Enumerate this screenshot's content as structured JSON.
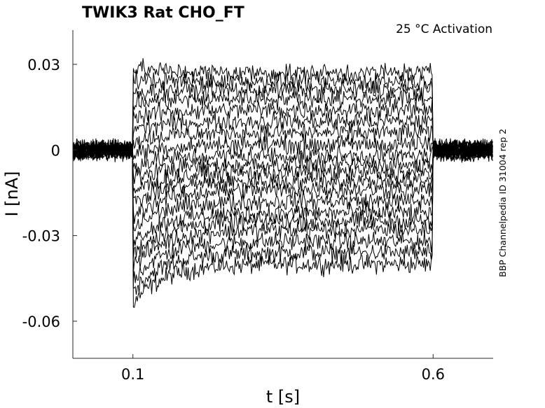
{
  "chart_data": {
    "type": "line",
    "title": "TWIK3  Rat  CHO_FT",
    "annotation": "25 °C  Activation",
    "side_label": "BBP Channelpedia ID 31004 rep 2",
    "xlabel": "t [s]",
    "ylabel": "I [nA]",
    "xlim": [
      0.0,
      0.7
    ],
    "ylim": [
      -0.073,
      0.042
    ],
    "x_ticks": [
      0.1,
      0.6
    ],
    "x_tick_labels": [
      "0.1",
      "0.6"
    ],
    "y_ticks": [
      0.03,
      0,
      -0.03,
      -0.06
    ],
    "y_tick_labels": [
      "0.03",
      "0",
      "-0.03",
      "-0.06"
    ],
    "pulse": {
      "start": 0.1,
      "end": 0.6
    },
    "holding_current": 0.0,
    "noise_amplitude": 0.004,
    "steady_state_levels": [
      -0.04,
      -0.036,
      -0.032,
      -0.028,
      -0.025,
      -0.022,
      -0.018,
      -0.014,
      -0.011,
      -0.008,
      -0.005,
      -0.002,
      0.002,
      0.006,
      0.01,
      0.014,
      0.018,
      0.021,
      0.024,
      0.027
    ],
    "line_color": "#000000",
    "grid": false
  }
}
